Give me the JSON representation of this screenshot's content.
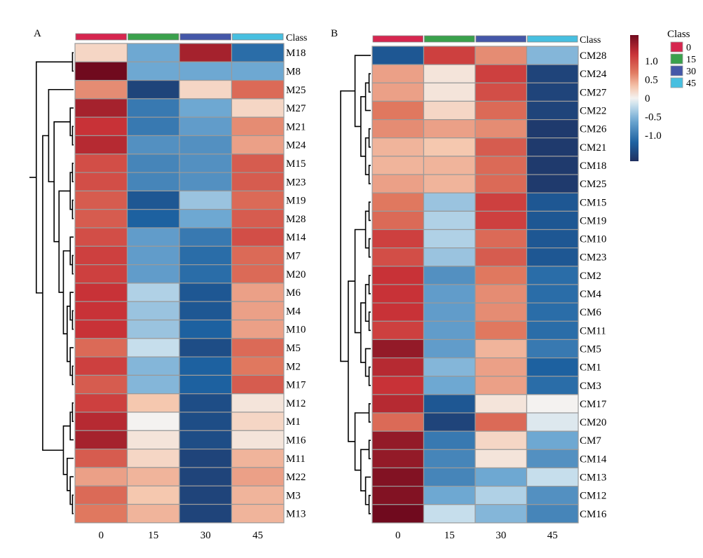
{
  "colors": {
    "class_0": "#d6264f",
    "class_15": "#3aa14c",
    "class_30": "#4457a8",
    "class_45": "#47bfe0",
    "grid": "#9a9a9a",
    "dendrogram": "#000000"
  },
  "legend": {
    "title": "Class",
    "items": [
      "0",
      "15",
      "30",
      "45"
    ],
    "scale_ticks": [
      "1.0",
      "0.5",
      "0",
      "-0.5",
      "-1.0"
    ]
  },
  "chart_data": [
    {
      "type": "heatmap",
      "panel_label": "A",
      "class_label": "Class",
      "columns": [
        "0",
        "15",
        "30",
        "45"
      ],
      "rows": [
        "M18",
        "M8",
        "M25",
        "M27",
        "M21",
        "M24",
        "M15",
        "M23",
        "M19",
        "M28",
        "M14",
        "M7",
        "M20",
        "M6",
        "M4",
        "M10",
        "M5",
        "M2",
        "M17",
        "M12",
        "M1",
        "M16",
        "M11",
        "M22",
        "M3",
        "M13"
      ],
      "values": [
        [
          0.2,
          -0.6,
          1.4,
          -1.1
        ],
        [
          1.7,
          -0.6,
          -0.6,
          -0.6
        ],
        [
          0.6,
          -1.5,
          0.2,
          0.8
        ],
        [
          1.4,
          -1.0,
          -0.6,
          0.2
        ],
        [
          1.2,
          -1.0,
          -0.7,
          0.6
        ],
        [
          1.3,
          -0.8,
          -0.8,
          0.5
        ],
        [
          1.0,
          -0.9,
          -0.8,
          0.9
        ],
        [
          1.0,
          -0.9,
          -0.8,
          0.9
        ],
        [
          0.9,
          -1.3,
          -0.4,
          0.8
        ],
        [
          0.9,
          -1.2,
          -0.6,
          0.9
        ],
        [
          1.0,
          -0.7,
          -1.0,
          1.0
        ],
        [
          1.1,
          -0.7,
          -1.1,
          0.8
        ],
        [
          1.1,
          -0.7,
          -1.1,
          0.8
        ],
        [
          1.2,
          -0.3,
          -1.3,
          0.5
        ],
        [
          1.2,
          -0.4,
          -1.3,
          0.5
        ],
        [
          1.2,
          -0.4,
          -1.2,
          0.5
        ],
        [
          0.8,
          -0.2,
          -1.4,
          0.8
        ],
        [
          1.1,
          -0.5,
          -1.2,
          0.7
        ],
        [
          0.9,
          -0.5,
          -1.2,
          0.9
        ],
        [
          1.1,
          0.3,
          -1.4,
          0.1
        ],
        [
          1.3,
          0.0,
          -1.4,
          0.2
        ],
        [
          1.4,
          0.1,
          -1.4,
          0.1
        ],
        [
          0.9,
          0.2,
          -1.5,
          0.4
        ],
        [
          0.5,
          0.4,
          -1.5,
          0.5
        ],
        [
          0.8,
          0.3,
          -1.5,
          0.4
        ],
        [
          0.7,
          0.4,
          -1.5,
          0.4
        ]
      ]
    },
    {
      "type": "heatmap",
      "panel_label": "B",
      "class_label": "Class",
      "columns": [
        "0",
        "15",
        "30",
        "45"
      ],
      "rows": [
        "CM28",
        "CM24",
        "CM27",
        "CM22",
        "CM26",
        "CM21",
        "CM18",
        "CM25",
        "CM15",
        "CM19",
        "CM10",
        "CM23",
        "CM2",
        "CM4",
        "CM6",
        "CM11",
        "CM5",
        "CM1",
        "CM3",
        "CM17",
        "CM20",
        "CM7",
        "CM14",
        "CM13",
        "CM12",
        "CM16"
      ],
      "values": [
        [
          -1.3,
          1.1,
          0.6,
          -0.5
        ],
        [
          0.5,
          0.1,
          1.1,
          -1.5
        ],
        [
          0.5,
          0.1,
          1.0,
          -1.5
        ],
        [
          0.7,
          0.2,
          0.8,
          -1.5
        ],
        [
          0.6,
          0.5,
          0.6,
          -1.6
        ],
        [
          0.4,
          0.3,
          0.9,
          -1.6
        ],
        [
          0.4,
          0.4,
          0.8,
          -1.6
        ],
        [
          0.5,
          0.4,
          0.8,
          -1.6
        ],
        [
          0.7,
          -0.4,
          1.1,
          -1.3
        ],
        [
          0.8,
          -0.3,
          1.1,
          -1.3
        ],
        [
          1.1,
          -0.3,
          0.8,
          -1.3
        ],
        [
          1.0,
          -0.4,
          0.9,
          -1.3
        ],
        [
          1.2,
          -0.8,
          0.7,
          -1.1
        ],
        [
          1.2,
          -0.7,
          0.6,
          -1.1
        ],
        [
          1.2,
          -0.7,
          0.6,
          -1.1
        ],
        [
          1.1,
          -0.7,
          0.7,
          -1.1
        ],
        [
          1.5,
          -0.7,
          0.4,
          -1.0
        ],
        [
          1.3,
          -0.5,
          0.5,
          -1.2
        ],
        [
          1.2,
          -0.6,
          0.5,
          -1.1
        ],
        [
          1.3,
          -1.3,
          0.1,
          0.0
        ],
        [
          0.8,
          -1.5,
          0.8,
          -0.1
        ],
        [
          1.5,
          -1.0,
          0.2,
          -0.6
        ],
        [
          1.5,
          -0.9,
          0.1,
          -0.8
        ],
        [
          1.6,
          -0.9,
          -0.6,
          -0.2
        ],
        [
          1.6,
          -0.6,
          -0.3,
          -0.8
        ],
        [
          1.7,
          -0.2,
          -0.5,
          -0.9
        ]
      ]
    }
  ]
}
